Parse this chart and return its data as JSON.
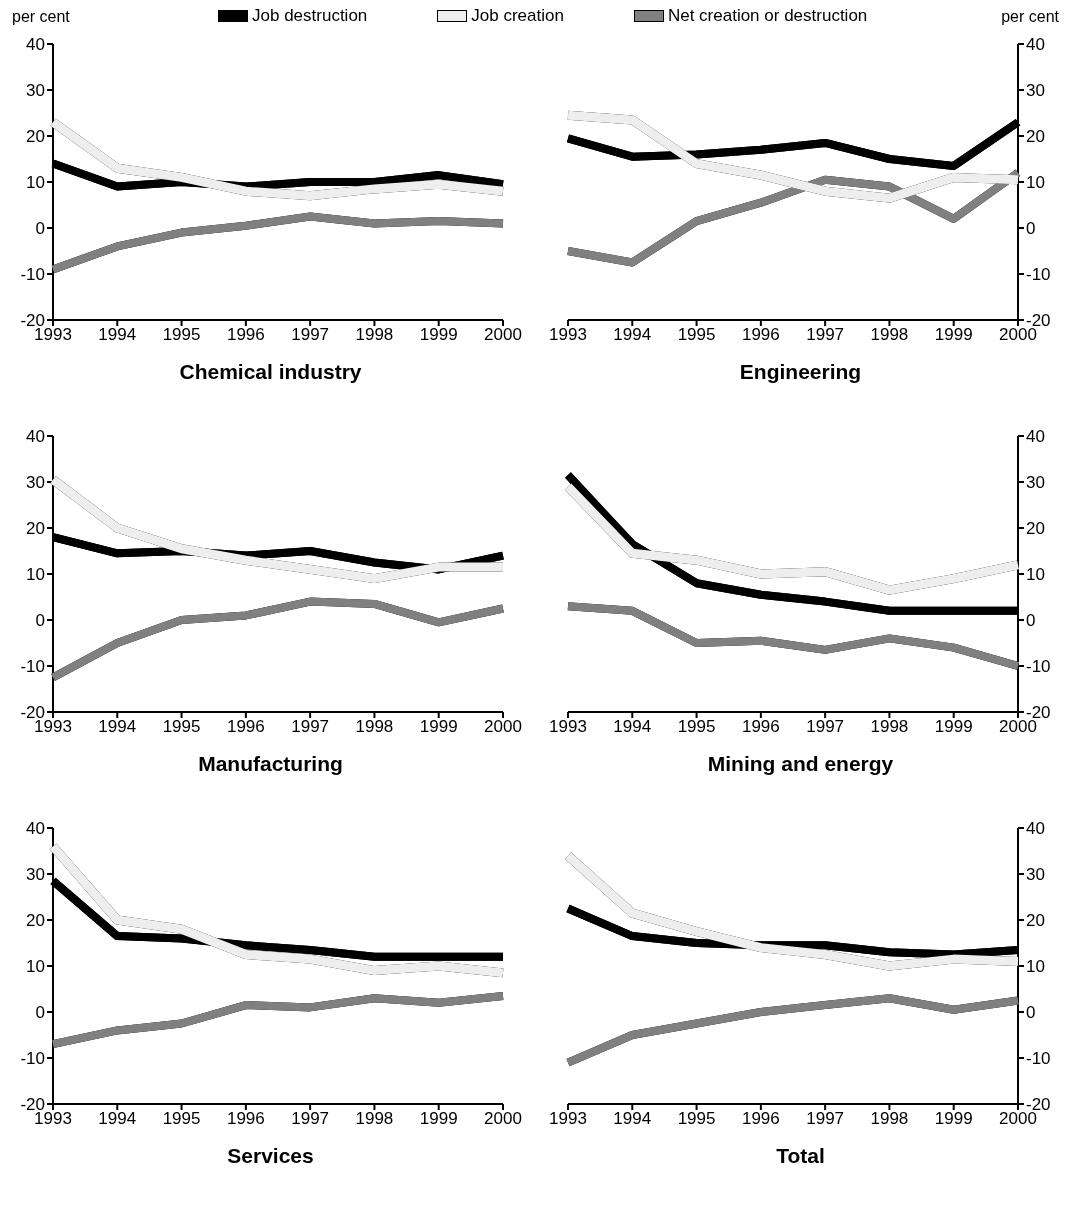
{
  "chart_data": [
    {
      "type": "line",
      "title": "Chemical industry",
      "ylabel": "per cent",
      "categories": [
        "1993",
        "1994",
        "1995",
        "1996",
        "1997",
        "1998",
        "1999",
        "2000"
      ],
      "ylim": [
        -20,
        40
      ],
      "yticks": [
        -20,
        -10,
        0,
        10,
        20,
        30,
        40
      ],
      "legend": "top",
      "series": [
        {
          "name": "Job destruction",
          "color": "#000000",
          "values": [
            14,
            9,
            10,
            9,
            10,
            10,
            11.5,
            9.5
          ]
        },
        {
          "name": "Job creation",
          "color": "#eeeeee",
          "values": [
            23,
            13,
            11,
            8,
            7,
            8.5,
            9.5,
            8
          ]
        },
        {
          "name": "Net creation or destruction",
          "color": "#808080",
          "values": [
            -9,
            -4,
            -1,
            0.5,
            2.5,
            1,
            1.5,
            1
          ]
        }
      ]
    },
    {
      "type": "line",
      "title": "Engineering",
      "y2label": "per cent",
      "categories": [
        "1993",
        "1994",
        "1995",
        "1996",
        "1997",
        "1998",
        "1999",
        "2000"
      ],
      "y2lim": [
        -20,
        40
      ],
      "y2ticks": [
        -20,
        -10,
        0,
        10,
        20,
        30,
        40
      ],
      "series": [
        {
          "color": "#000000",
          "axis": "y2",
          "values": [
            19.5,
            15.5,
            16,
            17,
            18.5,
            15,
            13.5,
            23
          ]
        },
        {
          "color": "#eeeeee",
          "axis": "y2",
          "values": [
            24.5,
            23.5,
            14,
            11.5,
            8,
            6.5,
            11,
            10.5
          ]
        },
        {
          "color": "#808080",
          "axis": "y2",
          "values": [
            -5,
            -7.5,
            1.5,
            5.5,
            10.5,
            9,
            2,
            12
          ]
        }
      ]
    },
    {
      "type": "line",
      "title": "Manufacturing",
      "categories": [
        "1993",
        "1994",
        "1995",
        "1996",
        "1997",
        "1998",
        "1999",
        "2000"
      ],
      "ylim": [
        -20,
        40
      ],
      "yticks": [
        -20,
        -10,
        0,
        10,
        20,
        30,
        40
      ],
      "series": [
        {
          "color": "#000000",
          "values": [
            18,
            14.5,
            15,
            14,
            15,
            12.5,
            11,
            14
          ]
        },
        {
          "color": "#eeeeee",
          "values": [
            30.5,
            20,
            15.5,
            13,
            11,
            9,
            11.5,
            11.5
          ]
        },
        {
          "color": "#808080",
          "values": [
            -12.5,
            -5,
            0,
            1,
            4,
            3.5,
            -0.5,
            2.5
          ]
        }
      ]
    },
    {
      "type": "line",
      "title": "Mining and energy",
      "categories": [
        "1993",
        "1994",
        "1995",
        "1996",
        "1997",
        "1998",
        "1999",
        "2000"
      ],
      "y2lim": [
        -20,
        40
      ],
      "y2ticks": [
        -20,
        -10,
        0,
        10,
        20,
        30,
        40
      ],
      "series": [
        {
          "color": "#000000",
          "axis": "y2",
          "values": [
            31.5,
            16.5,
            8,
            5.5,
            4,
            2,
            2,
            2
          ]
        },
        {
          "color": "#eeeeee",
          "axis": "y2",
          "values": [
            29,
            14.5,
            13,
            10,
            10.5,
            6.5,
            9,
            12
          ]
        },
        {
          "color": "#808080",
          "axis": "y2",
          "values": [
            3,
            2,
            -5,
            -4.5,
            -6.5,
            -4,
            -6,
            -10
          ]
        }
      ]
    },
    {
      "type": "line",
      "title": "Services",
      "categories": [
        "1993",
        "1994",
        "1995",
        "1996",
        "1997",
        "1998",
        "1999",
        "2000"
      ],
      "ylim": [
        -20,
        40
      ],
      "yticks": [
        -20,
        -10,
        0,
        10,
        20,
        30,
        40
      ],
      "series": [
        {
          "color": "#000000",
          "values": [
            28.5,
            16.5,
            16,
            14.5,
            13.5,
            12,
            12,
            12
          ]
        },
        {
          "color": "#eeeeee",
          "values": [
            36,
            20,
            18,
            12.5,
            11.5,
            9,
            10,
            8.5
          ]
        },
        {
          "color": "#808080",
          "values": [
            -7,
            -4,
            -2.5,
            1.5,
            1,
            3,
            2,
            3.5
          ]
        }
      ]
    },
    {
      "type": "line",
      "title": "Total",
      "categories": [
        "1993",
        "1994",
        "1995",
        "1996",
        "1997",
        "1998",
        "1999",
        "2000"
      ],
      "y2lim": [
        -20,
        40
      ],
      "y2ticks": [
        -20,
        -10,
        0,
        10,
        20,
        30,
        40
      ],
      "series": [
        {
          "color": "#000000",
          "axis": "y2",
          "values": [
            22.5,
            16.5,
            15,
            14.5,
            14.5,
            13,
            12.5,
            13.5
          ]
        },
        {
          "color": "#eeeeee",
          "axis": "y2",
          "values": [
            34,
            21.5,
            17.5,
            14,
            12.5,
            10,
            11.5,
            11
          ]
        },
        {
          "color": "#808080",
          "axis": "y2",
          "values": [
            -11,
            -5,
            -2.5,
            0,
            1.5,
            3,
            0.5,
            2.5
          ]
        }
      ]
    }
  ]
}
